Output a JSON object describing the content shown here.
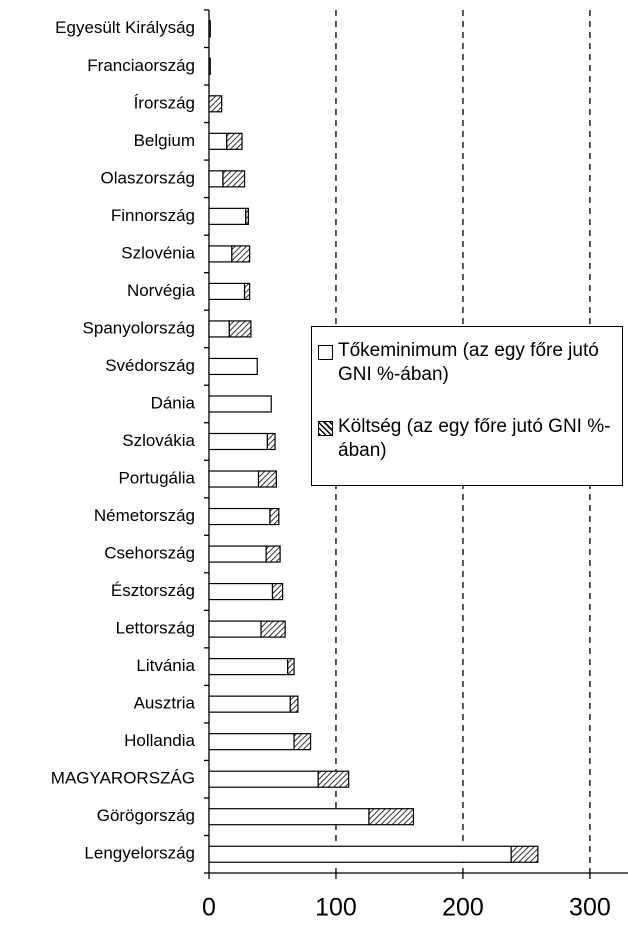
{
  "chart_data": {
    "type": "stacked_barh",
    "categories": [
      "Egyesült Királyság",
      "Franciaország",
      "Írország",
      "Belgium",
      "Olaszország",
      "Finnország",
      "Szlovénia",
      "Norvégia",
      "Spanyolország",
      "Svédország",
      "Dánia",
      "Szlovákia",
      "Portugália",
      "Németország",
      "Csehország",
      "Észtország",
      "Lettország",
      "Litvánia",
      "Ausztria",
      "Hollandia",
      "MAGYARORSZÁG",
      "Görögország",
      "Lengyelország"
    ],
    "series": [
      {
        "name": "Tőkeminimum (az egy főre jutó GNI %-ában)",
        "color": "#ffffff",
        "hatch": false,
        "values": [
          0,
          0,
          0,
          14,
          11,
          29,
          18,
          28,
          16,
          38,
          49,
          46,
          39,
          48,
          45,
          50,
          41,
          62,
          64,
          67,
          86,
          126,
          238
        ]
      },
      {
        "name": "Költség (az egy főre jutó GNI %-ában)",
        "color": "#ffffff",
        "hatch": true,
        "values": [
          1,
          1,
          10,
          12,
          17,
          2,
          14,
          4,
          17,
          0,
          0,
          6,
          14,
          7,
          11,
          8,
          19,
          5,
          6,
          13,
          24,
          35,
          21
        ]
      }
    ],
    "xlim": [
      0,
      330
    ],
    "xticks": [
      0,
      100,
      200,
      300
    ],
    "grid": true
  }
}
